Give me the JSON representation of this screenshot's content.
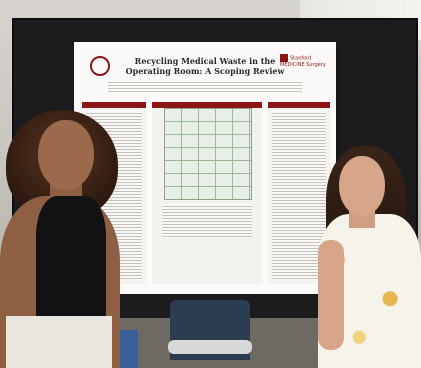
{
  "photo": {
    "poster": {
      "title": "Recycling Medical Waste in the Operating Room: A Scoping Review",
      "logo_right_text": "Stanford MEDICINE Surgery"
    }
  }
}
